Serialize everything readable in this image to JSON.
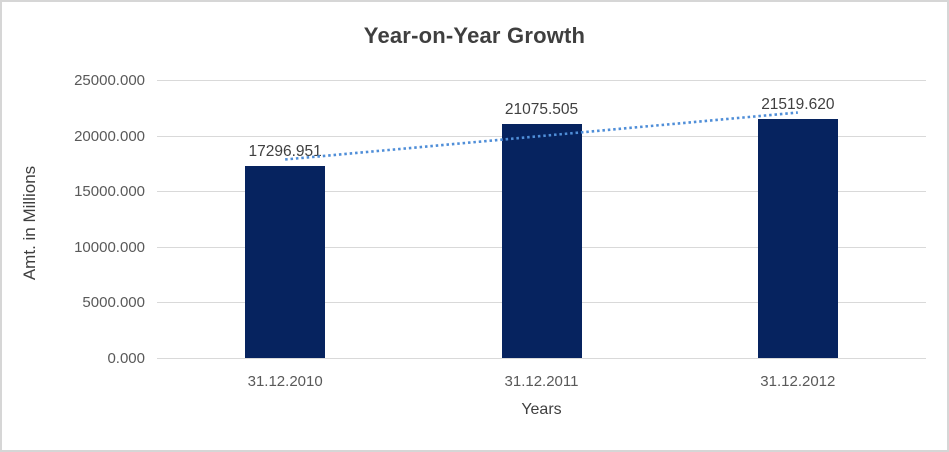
{
  "chart_data": {
    "type": "bar",
    "title": "Year-on-Year Growth",
    "xlabel": "Years",
    "ylabel": "Amt. in Millions",
    "categories": [
      "31.12.2010",
      "31.12.2011",
      "31.12.2012"
    ],
    "values": [
      17296.951,
      21075.505,
      21519.62
    ],
    "value_labels": [
      "17296.951",
      "21075.505",
      "21519.620"
    ],
    "ylim": [
      0,
      25000
    ],
    "ytick_labels": [
      "0.000",
      "5000.000",
      "10000.000",
      "15000.000",
      "20000.000",
      "25000.000"
    ],
    "grid": true,
    "legend": "none",
    "trendline": {
      "type": "linear",
      "style": "dotted"
    },
    "colors": {
      "bar": "#06235f",
      "trendline": "#4f8ed8",
      "gridline": "#d9d9d9",
      "title": "#3f3f3f",
      "axis_title": "#3f3f3f",
      "tick_label": "#595959",
      "data_label": "#404040",
      "frame_border": "#d6d6d6",
      "background": "#ffffff"
    }
  }
}
